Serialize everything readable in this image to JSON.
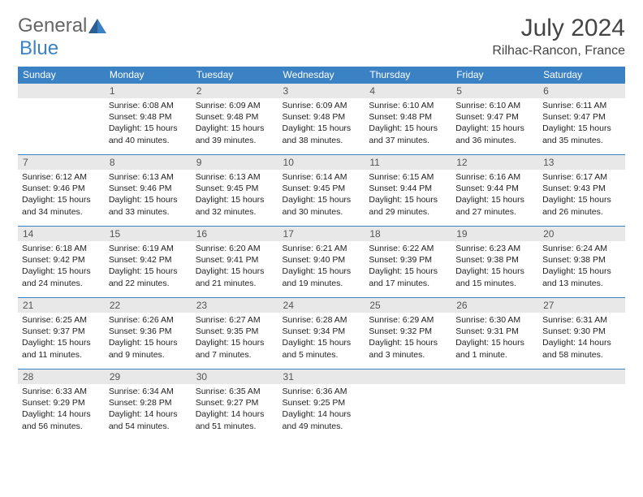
{
  "logo": {
    "part1": "General",
    "part2": "Blue"
  },
  "title": "July 2024",
  "location": "Rilhac-Rancon, France",
  "colors": {
    "header_bg": "#3b82c4",
    "header_text": "#ffffff",
    "daynum_bg": "#e8e8e8",
    "border": "#3b82c4"
  },
  "weekdays": [
    "Sunday",
    "Monday",
    "Tuesday",
    "Wednesday",
    "Thursday",
    "Friday",
    "Saturday"
  ],
  "weeks": [
    [
      null,
      {
        "n": "1",
        "sr": "Sunrise: 6:08 AM",
        "ss": "Sunset: 9:48 PM",
        "dl": "Daylight: 15 hours and 40 minutes."
      },
      {
        "n": "2",
        "sr": "Sunrise: 6:09 AM",
        "ss": "Sunset: 9:48 PM",
        "dl": "Daylight: 15 hours and 39 minutes."
      },
      {
        "n": "3",
        "sr": "Sunrise: 6:09 AM",
        "ss": "Sunset: 9:48 PM",
        "dl": "Daylight: 15 hours and 38 minutes."
      },
      {
        "n": "4",
        "sr": "Sunrise: 6:10 AM",
        "ss": "Sunset: 9:48 PM",
        "dl": "Daylight: 15 hours and 37 minutes."
      },
      {
        "n": "5",
        "sr": "Sunrise: 6:10 AM",
        "ss": "Sunset: 9:47 PM",
        "dl": "Daylight: 15 hours and 36 minutes."
      },
      {
        "n": "6",
        "sr": "Sunrise: 6:11 AM",
        "ss": "Sunset: 9:47 PM",
        "dl": "Daylight: 15 hours and 35 minutes."
      }
    ],
    [
      {
        "n": "7",
        "sr": "Sunrise: 6:12 AM",
        "ss": "Sunset: 9:46 PM",
        "dl": "Daylight: 15 hours and 34 minutes."
      },
      {
        "n": "8",
        "sr": "Sunrise: 6:13 AM",
        "ss": "Sunset: 9:46 PM",
        "dl": "Daylight: 15 hours and 33 minutes."
      },
      {
        "n": "9",
        "sr": "Sunrise: 6:13 AM",
        "ss": "Sunset: 9:45 PM",
        "dl": "Daylight: 15 hours and 32 minutes."
      },
      {
        "n": "10",
        "sr": "Sunrise: 6:14 AM",
        "ss": "Sunset: 9:45 PM",
        "dl": "Daylight: 15 hours and 30 minutes."
      },
      {
        "n": "11",
        "sr": "Sunrise: 6:15 AM",
        "ss": "Sunset: 9:44 PM",
        "dl": "Daylight: 15 hours and 29 minutes."
      },
      {
        "n": "12",
        "sr": "Sunrise: 6:16 AM",
        "ss": "Sunset: 9:44 PM",
        "dl": "Daylight: 15 hours and 27 minutes."
      },
      {
        "n": "13",
        "sr": "Sunrise: 6:17 AM",
        "ss": "Sunset: 9:43 PM",
        "dl": "Daylight: 15 hours and 26 minutes."
      }
    ],
    [
      {
        "n": "14",
        "sr": "Sunrise: 6:18 AM",
        "ss": "Sunset: 9:42 PM",
        "dl": "Daylight: 15 hours and 24 minutes."
      },
      {
        "n": "15",
        "sr": "Sunrise: 6:19 AM",
        "ss": "Sunset: 9:42 PM",
        "dl": "Daylight: 15 hours and 22 minutes."
      },
      {
        "n": "16",
        "sr": "Sunrise: 6:20 AM",
        "ss": "Sunset: 9:41 PM",
        "dl": "Daylight: 15 hours and 21 minutes."
      },
      {
        "n": "17",
        "sr": "Sunrise: 6:21 AM",
        "ss": "Sunset: 9:40 PM",
        "dl": "Daylight: 15 hours and 19 minutes."
      },
      {
        "n": "18",
        "sr": "Sunrise: 6:22 AM",
        "ss": "Sunset: 9:39 PM",
        "dl": "Daylight: 15 hours and 17 minutes."
      },
      {
        "n": "19",
        "sr": "Sunrise: 6:23 AM",
        "ss": "Sunset: 9:38 PM",
        "dl": "Daylight: 15 hours and 15 minutes."
      },
      {
        "n": "20",
        "sr": "Sunrise: 6:24 AM",
        "ss": "Sunset: 9:38 PM",
        "dl": "Daylight: 15 hours and 13 minutes."
      }
    ],
    [
      {
        "n": "21",
        "sr": "Sunrise: 6:25 AM",
        "ss": "Sunset: 9:37 PM",
        "dl": "Daylight: 15 hours and 11 minutes."
      },
      {
        "n": "22",
        "sr": "Sunrise: 6:26 AM",
        "ss": "Sunset: 9:36 PM",
        "dl": "Daylight: 15 hours and 9 minutes."
      },
      {
        "n": "23",
        "sr": "Sunrise: 6:27 AM",
        "ss": "Sunset: 9:35 PM",
        "dl": "Daylight: 15 hours and 7 minutes."
      },
      {
        "n": "24",
        "sr": "Sunrise: 6:28 AM",
        "ss": "Sunset: 9:34 PM",
        "dl": "Daylight: 15 hours and 5 minutes."
      },
      {
        "n": "25",
        "sr": "Sunrise: 6:29 AM",
        "ss": "Sunset: 9:32 PM",
        "dl": "Daylight: 15 hours and 3 minutes."
      },
      {
        "n": "26",
        "sr": "Sunrise: 6:30 AM",
        "ss": "Sunset: 9:31 PM",
        "dl": "Daylight: 15 hours and 1 minute."
      },
      {
        "n": "27",
        "sr": "Sunrise: 6:31 AM",
        "ss": "Sunset: 9:30 PM",
        "dl": "Daylight: 14 hours and 58 minutes."
      }
    ],
    [
      {
        "n": "28",
        "sr": "Sunrise: 6:33 AM",
        "ss": "Sunset: 9:29 PM",
        "dl": "Daylight: 14 hours and 56 minutes."
      },
      {
        "n": "29",
        "sr": "Sunrise: 6:34 AM",
        "ss": "Sunset: 9:28 PM",
        "dl": "Daylight: 14 hours and 54 minutes."
      },
      {
        "n": "30",
        "sr": "Sunrise: 6:35 AM",
        "ss": "Sunset: 9:27 PM",
        "dl": "Daylight: 14 hours and 51 minutes."
      },
      {
        "n": "31",
        "sr": "Sunrise: 6:36 AM",
        "ss": "Sunset: 9:25 PM",
        "dl": "Daylight: 14 hours and 49 minutes."
      },
      null,
      null,
      null
    ]
  ]
}
